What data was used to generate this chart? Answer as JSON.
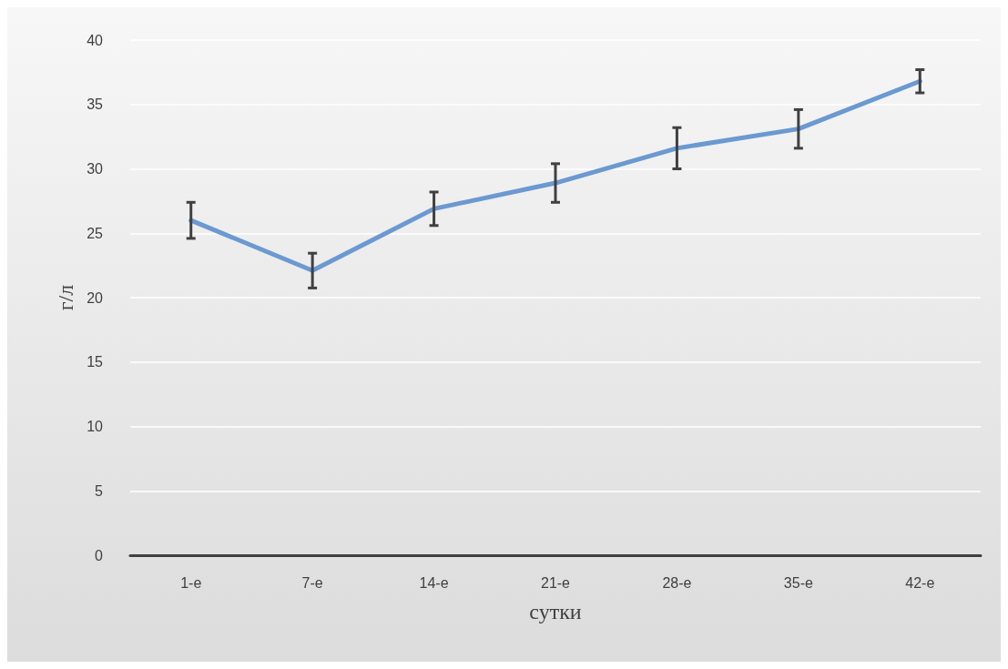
{
  "chart_data": {
    "type": "line",
    "xlabel": "сутки",
    "ylabel": "г/л",
    "categories": [
      "1-е",
      "7-е",
      "14-е",
      "21-е",
      "28-е",
      "35-е",
      "42-е"
    ],
    "series": [
      {
        "color": "#6b99d1",
        "values": [
          26.0,
          22.1,
          26.9,
          28.9,
          31.6,
          33.1,
          36.8
        ],
        "errors": [
          1.4,
          1.35,
          1.3,
          1.5,
          1.6,
          1.5,
          0.9
        ]
      }
    ],
    "ylim": [
      0,
      40
    ],
    "yticks": [
      0,
      5,
      10,
      15,
      20,
      25,
      30,
      35,
      40
    ],
    "grid": "y",
    "marker": "none",
    "line_style": "solid"
  }
}
